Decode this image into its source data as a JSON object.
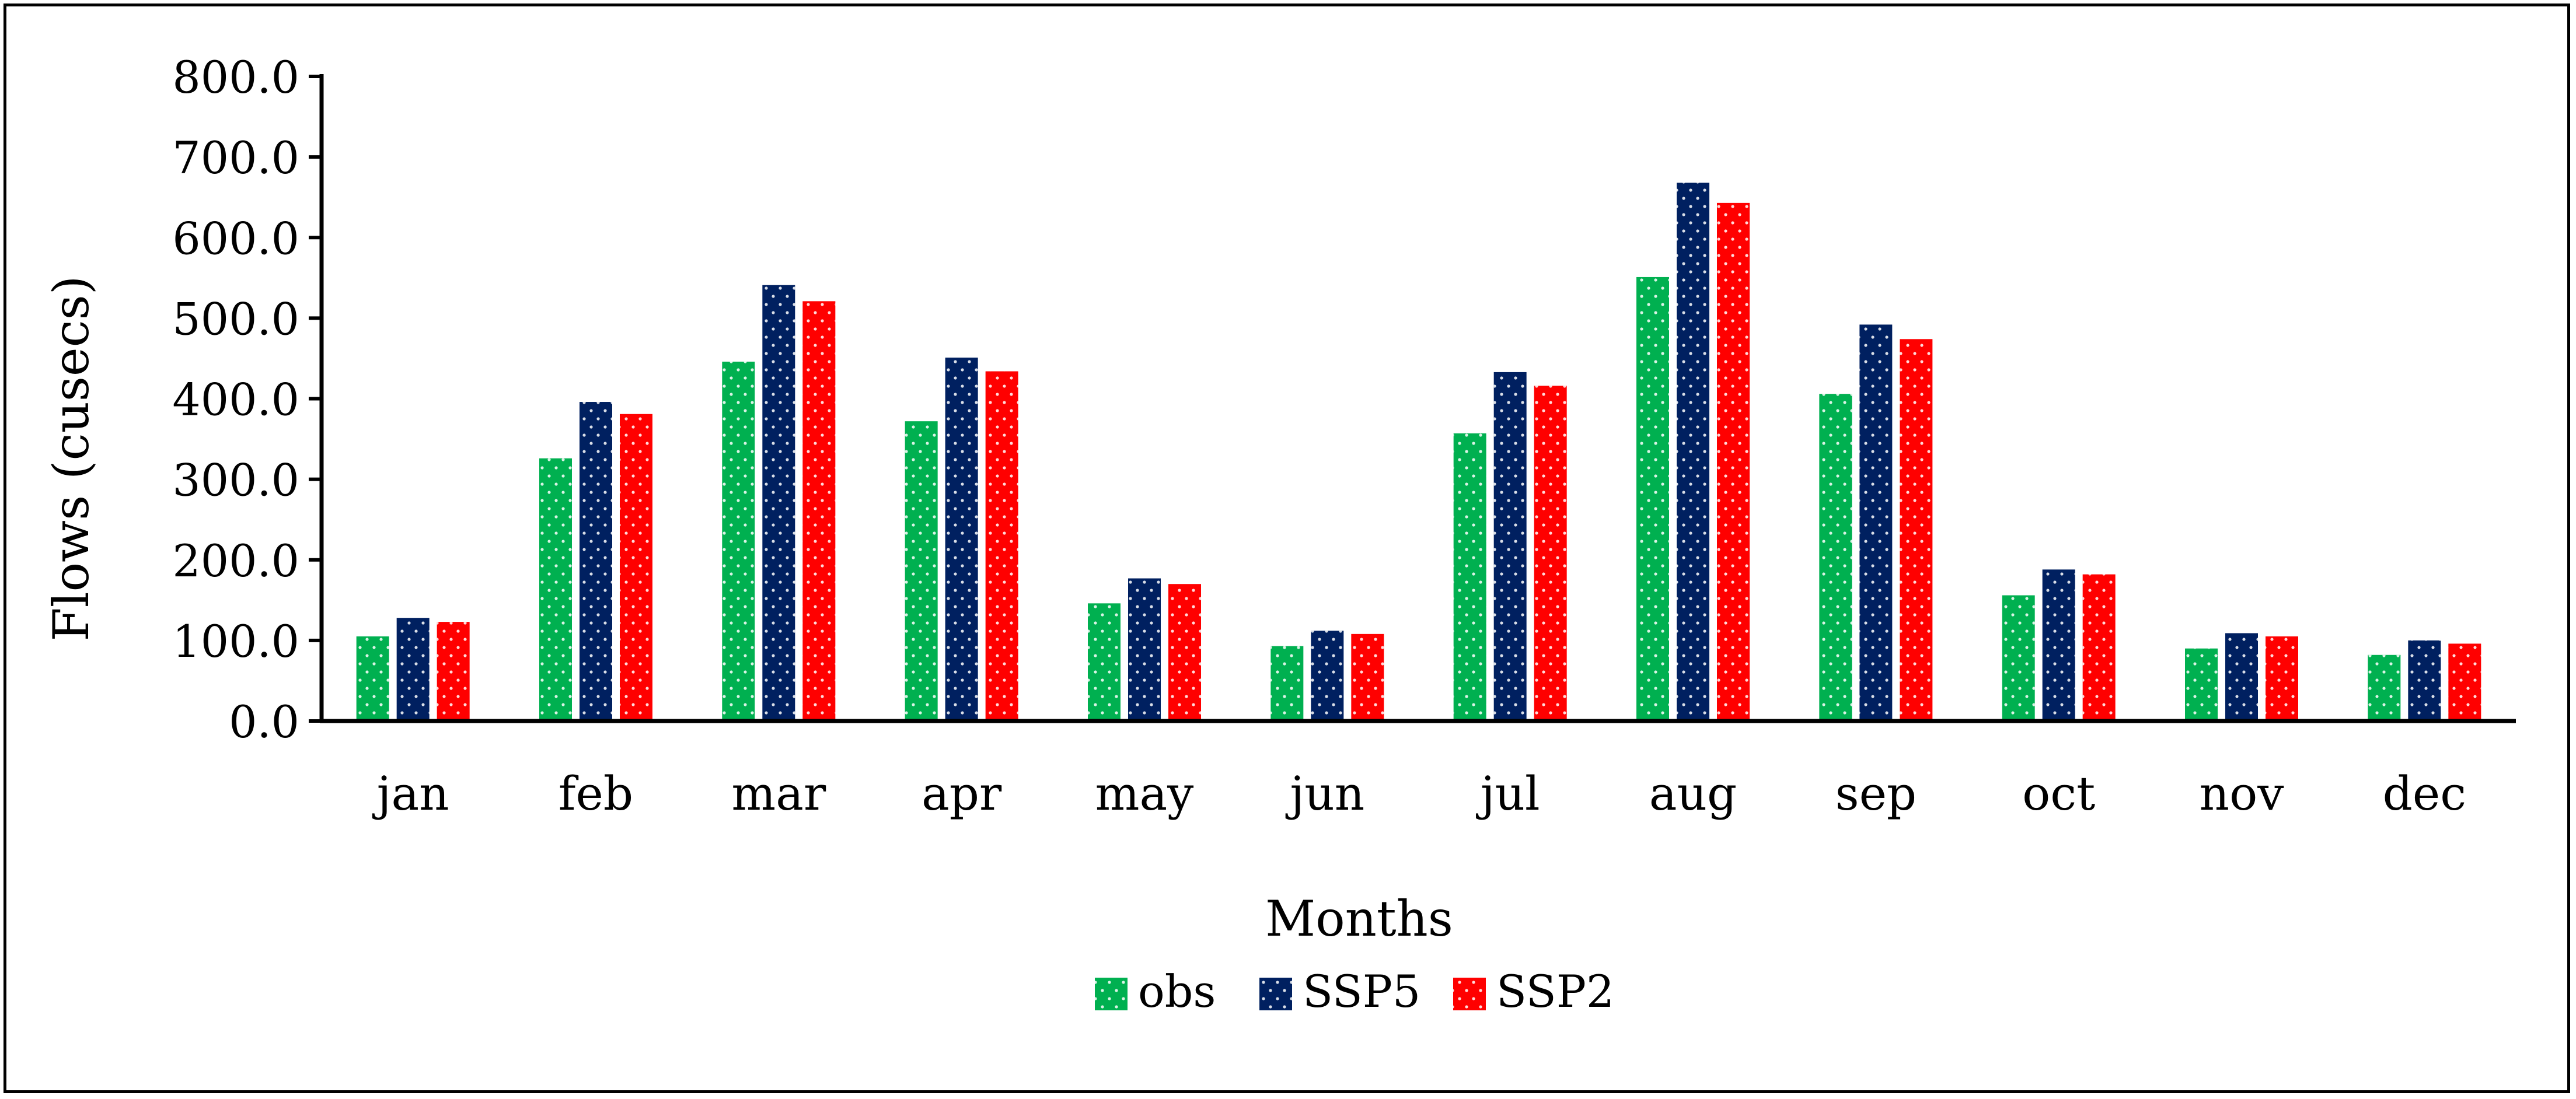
{
  "chart_data": {
    "type": "bar",
    "title": "",
    "xlabel": "Months",
    "ylabel": "Flows (cusecs)",
    "ylim": [
      0,
      800
    ],
    "ytick_step": 100,
    "ytick_labels": [
      "0.0",
      "100.0",
      "200.0",
      "300.0",
      "400.0",
      "500.0",
      "600.0",
      "700.0",
      "800.0"
    ],
    "grid": false,
    "legend_position": "bottom-center",
    "categories": [
      "jan",
      "feb",
      "mar",
      "apr",
      "may",
      "jun",
      "jul",
      "aug",
      "sep",
      "oct",
      "nov",
      "dec"
    ],
    "series": [
      {
        "name": "obs",
        "color": "#00b050",
        "values": [
          105,
          326,
          446,
          372,
          146,
          93,
          357,
          551,
          406,
          156,
          90,
          82
        ]
      },
      {
        "name": "SSP5",
        "color": "#002060",
        "values": [
          128,
          396,
          541,
          451,
          177,
          112,
          433,
          668,
          492,
          188,
          109,
          100
        ]
      },
      {
        "name": "SSP2",
        "color": "#ff0000",
        "values": [
          123,
          381,
          521,
          434,
          170,
          108,
          416,
          643,
          474,
          182,
          105,
          96
        ]
      }
    ]
  }
}
